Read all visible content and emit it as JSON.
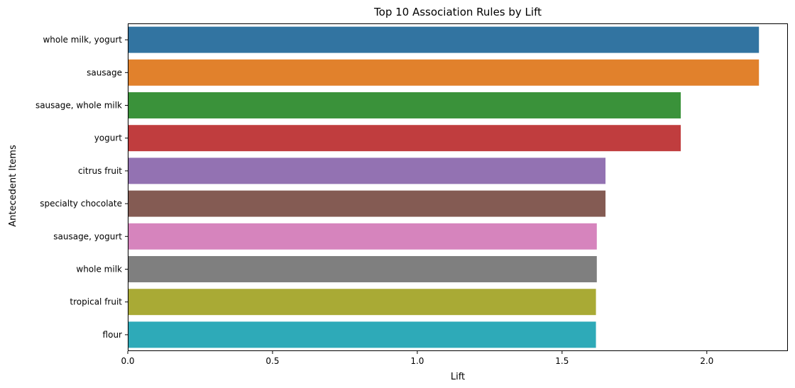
{
  "chart_data": {
    "type": "bar",
    "orientation": "horizontal",
    "title": "Top 10 Association Rules by Lift",
    "xlabel": "Lift",
    "ylabel": "Antecedent Items",
    "xlim": [
      0,
      2.28
    ],
    "xticks": [
      {
        "value": 0.0,
        "label": "0.0"
      },
      {
        "value": 0.5,
        "label": "0.5"
      },
      {
        "value": 1.0,
        "label": "1.0"
      },
      {
        "value": 1.5,
        "label": "1.5"
      },
      {
        "value": 2.0,
        "label": "2.0"
      }
    ],
    "grid": false,
    "categories": [
      "whole milk, yogurt",
      "sausage",
      "sausage, whole milk",
      "yogurt",
      "citrus fruit",
      "specialty chocolate",
      "sausage, yogurt",
      "whole milk",
      "tropical fruit",
      "flour"
    ],
    "values": [
      2.18,
      2.18,
      1.91,
      1.91,
      1.65,
      1.65,
      1.62,
      1.62,
      1.617,
      1.617
    ],
    "colors": [
      "#3274a1",
      "#e1812c",
      "#3a923a",
      "#c03d3e",
      "#9372b2",
      "#845b53",
      "#d684bd",
      "#7f7f7f",
      "#a9aa35",
      "#2eaab8"
    ]
  }
}
